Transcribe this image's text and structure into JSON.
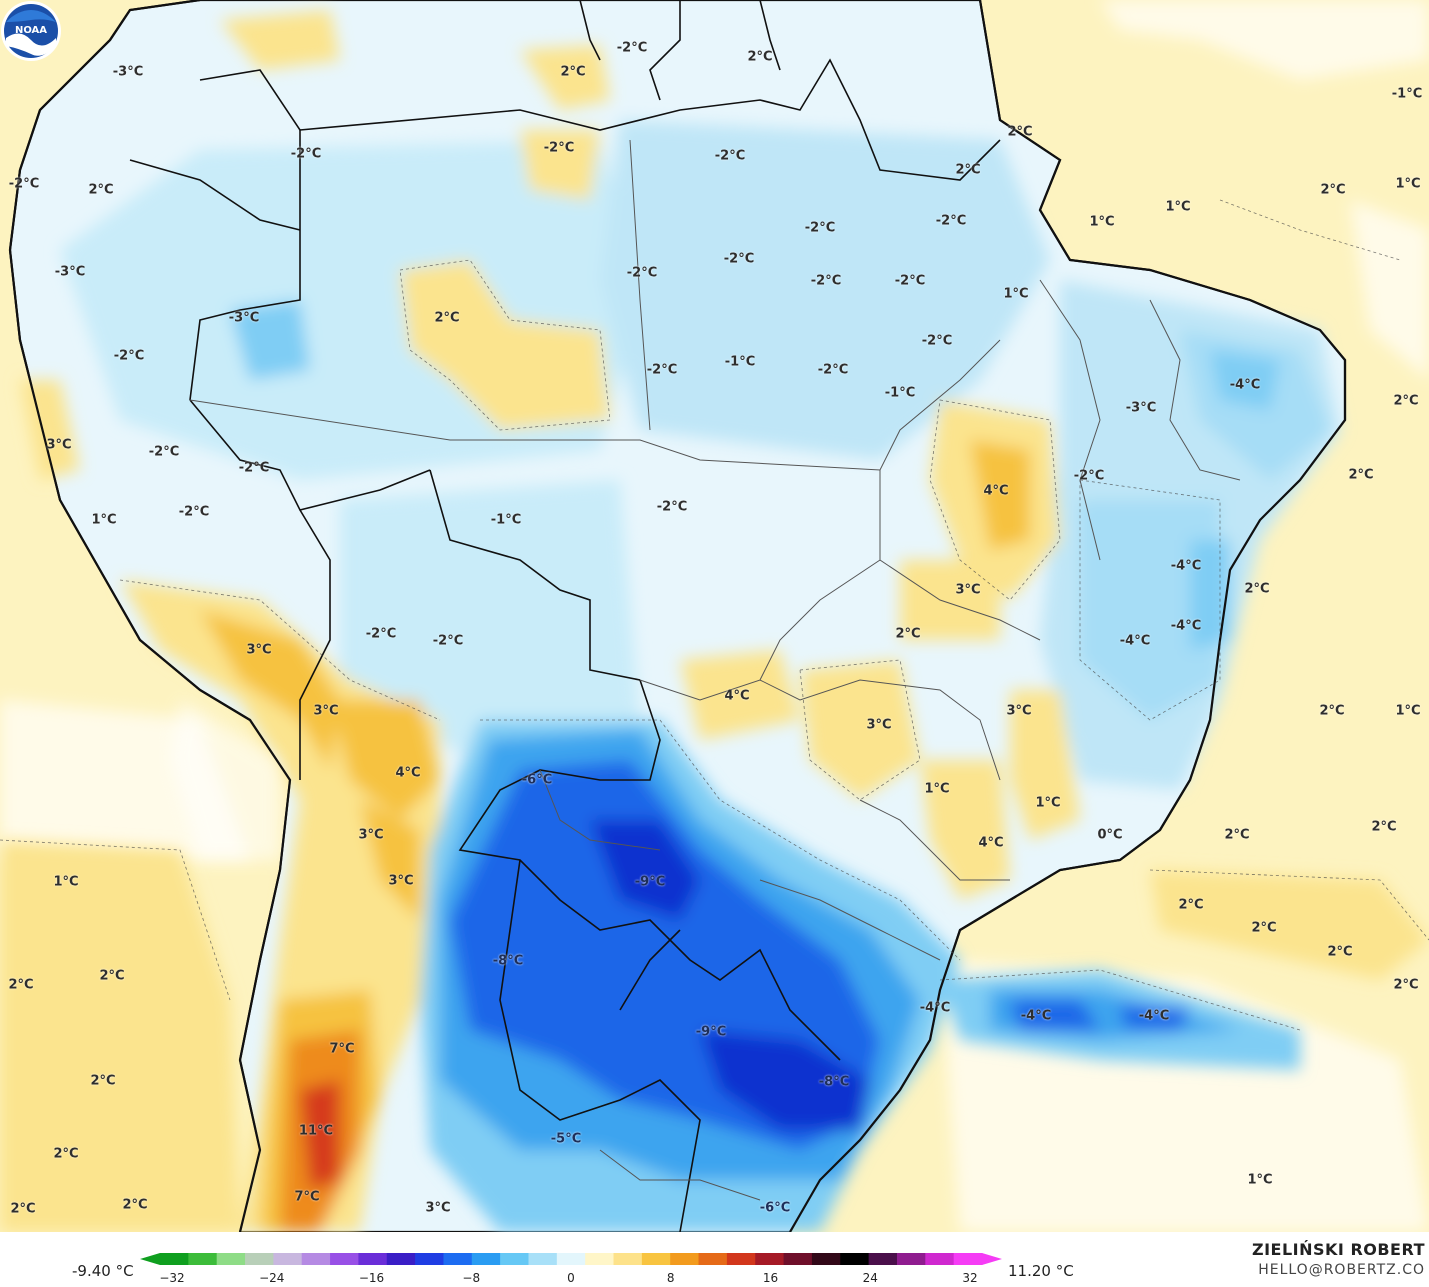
{
  "legend": {
    "min_value": "-9.40 °C",
    "max_value": "11.20 °C",
    "ticks": [
      "−32",
      "−24",
      "−16",
      "−8",
      "0",
      "8",
      "16",
      "24",
      "32"
    ],
    "colors": [
      "#0f9f1f",
      "#3cbc3a",
      "#8edc86",
      "#b8cfb8",
      "#c8b7df",
      "#b58ae3",
      "#9850e6",
      "#6a2ed8",
      "#3a1ec6",
      "#1f3de3",
      "#1d6cf1",
      "#2a9cf2",
      "#66c8f5",
      "#a8e0f8",
      "#e3f6fc",
      "#fff6c8",
      "#fde28a",
      "#f8c440",
      "#f29b1e",
      "#e56a18",
      "#d2371c",
      "#a51a26",
      "#6f0f2a",
      "#320818",
      "#000000",
      "#4a0f4a",
      "#8f1c8f",
      "#cf28cf",
      "#f53cf5"
    ]
  },
  "credit": {
    "name": "ZIELIŃSKI ROBERT",
    "email": "HELLO@ROBERTZ.CO"
  },
  "logo": {
    "text": "NOAA"
  },
  "palette": {
    "ocean": "#fdf3c0",
    "land_light": "#e8f6fc",
    "land_mid": "#bfe6f7",
    "cold_1": "#7fcdf4",
    "cold_2": "#3ea4ef",
    "cold_3": "#1a66e8",
    "cold_4": "#1032cf",
    "warm_1": "#fbe48e",
    "warm_2": "#f6c23f",
    "warm_3": "#ee8b1e",
    "warm_4": "#d63a1e",
    "hot": "#b51c5a",
    "border": "#111111"
  },
  "labels": [
    "2°C",
    "-3°C",
    "2°C",
    "-2°C",
    "2°C",
    "-1°C",
    "2°C",
    "-2°C",
    "-2°C",
    "-2°C",
    "2°C",
    "1°C",
    "2°C",
    "1°C",
    "1°C",
    "1°C",
    "-2°C",
    "-3°C",
    "-3°C",
    "2°C",
    "-2°C",
    "-2°C",
    "-2°C",
    "-2°C",
    "-2°C",
    "2°C",
    "-2°C",
    "-1°C",
    "-2°C",
    "-1°C",
    "-2°C",
    "3°C",
    "-2°C",
    "-2°C",
    "-3°C",
    "-4°C",
    "2°C",
    "1°C",
    "-2°C",
    "-2°C",
    "-1°C",
    "-2°C",
    "4°C",
    "-2°C",
    "2°C",
    "-4°C",
    "-4°C",
    "-4°C",
    "3°C",
    "2°C",
    "3°C",
    "-2°C",
    "-2°C",
    "2°C",
    "3°C",
    "4°C",
    "3°C",
    "3°C",
    "2°C",
    "1°C",
    "-6°C",
    "4°C",
    "-2°C",
    "1°C",
    "1°C",
    "4°C",
    "0°C",
    "2°C",
    "2°C",
    "1°C",
    "3°C",
    "-9°C",
    "3°C",
    "2°C",
    "2°C",
    "2°C",
    "2°C",
    "2°C",
    "-8°C",
    "-4°C",
    "-4°C",
    "-4°C",
    "2°C",
    "7°C",
    "-9°C",
    "2°C",
    "-8°C",
    "11°C",
    "-5°C",
    "2°C",
    "7°C",
    "2°C",
    "2°C",
    "3°C",
    "-6°C",
    "1°C"
  ]
}
